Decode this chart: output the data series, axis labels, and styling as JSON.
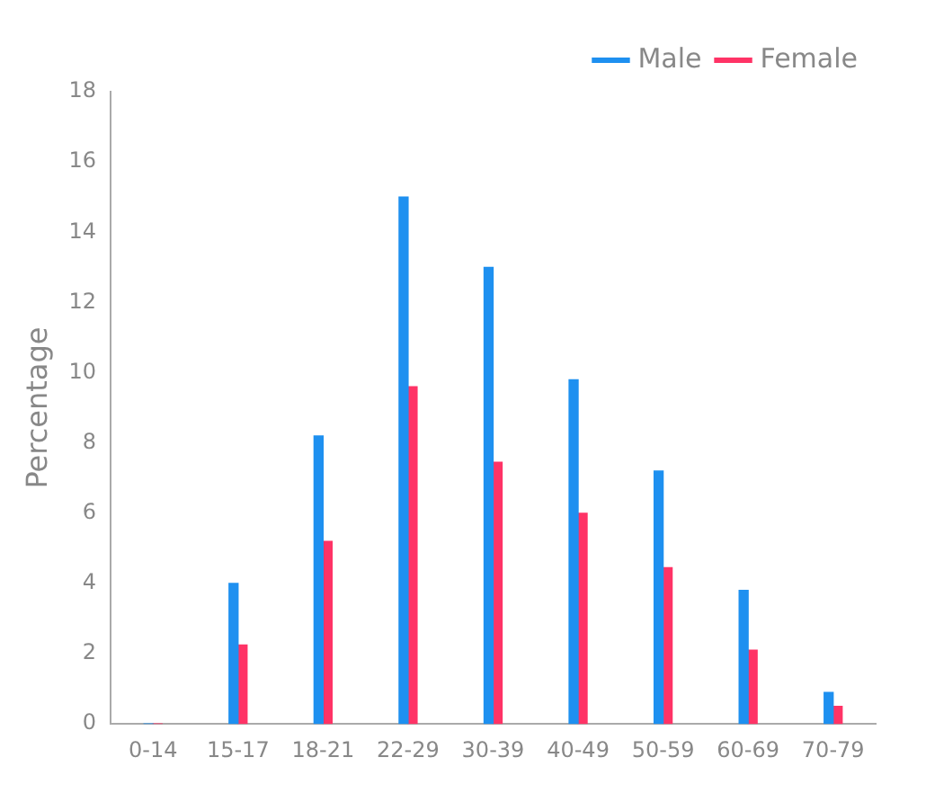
{
  "chart_data": {
    "type": "bar",
    "ylabel": "Percentage",
    "categories": [
      "0-14",
      "15-17",
      "18-21",
      "22-29",
      "30-39",
      "40-49",
      "50-59",
      "60-69",
      "70-79"
    ],
    "series": [
      {
        "name": "Male",
        "color": "#1e90f0",
        "values": [
          0,
          4.0,
          8.2,
          15.0,
          13.0,
          9.8,
          7.2,
          3.8,
          0.9
        ]
      },
      {
        "name": "Female",
        "color": "#ff3366",
        "values": [
          0,
          2.25,
          5.2,
          9.6,
          7.45,
          6.0,
          4.45,
          2.1,
          0.5
        ]
      }
    ],
    "ylim": [
      0,
      18
    ],
    "yticks": [
      0,
      2,
      4,
      6,
      8,
      10,
      12,
      14,
      16,
      18
    ],
    "grid": false,
    "legend": "top right"
  }
}
